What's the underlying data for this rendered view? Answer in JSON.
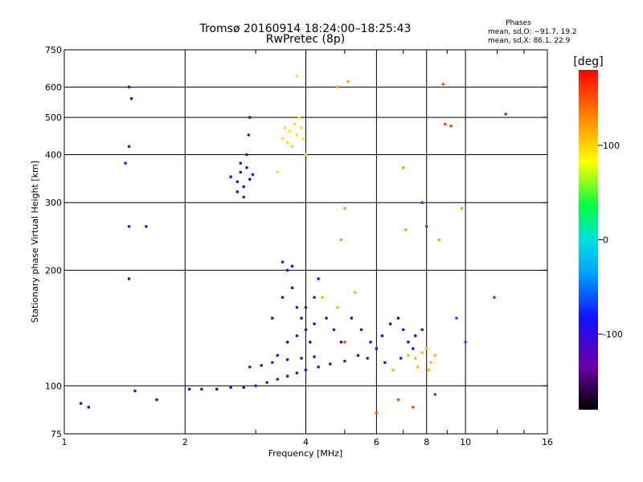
{
  "chart_data": {
    "type": "scatter",
    "title": "Tromsø 20160914 18:24:00–18:25:43",
    "subtitle": "RwPretec (8p)",
    "phase_info": {
      "heading": "Phases",
      "line1": "mean, sd,O: −91.7, 19.2",
      "line2": "mean, sd,X:  86.1, 22.9"
    },
    "xlabel": "Frequency [MHz]",
    "ylabel": "Stationary phase Virtual Height [km]",
    "x_scale": "log",
    "y_scale": "log",
    "xlim": [
      1,
      16
    ],
    "ylim": [
      75,
      750
    ],
    "x_ticks": [
      1,
      2,
      4,
      6,
      8,
      10,
      16
    ],
    "y_ticks": [
      75,
      100,
      200,
      300,
      400,
      500,
      600,
      750
    ],
    "x_grid": [
      2,
      4,
      6,
      8,
      10
    ],
    "y_grid": [
      100,
      200,
      300,
      400,
      500,
      600
    ],
    "grid": true,
    "colorbar": {
      "label": "[deg]",
      "range": [
        -180,
        180
      ],
      "ticks": [
        100,
        0,
        -100
      ]
    },
    "legend": "none",
    "clusters": [
      {
        "phase": -100,
        "points": [
          [
            2.05,
            98
          ],
          [
            2.2,
            98
          ],
          [
            2.4,
            98
          ],
          [
            2.6,
            99
          ],
          [
            2.8,
            99
          ],
          [
            3.0,
            100
          ],
          [
            3.2,
            102
          ],
          [
            3.4,
            104
          ],
          [
            3.6,
            106
          ],
          [
            3.8,
            108
          ],
          [
            4.0,
            110
          ],
          [
            4.3,
            112
          ],
          [
            4.6,
            114
          ],
          [
            5.0,
            116
          ]
        ]
      },
      {
        "phase": -110,
        "points": [
          [
            2.9,
            112
          ],
          [
            3.1,
            113
          ],
          [
            3.3,
            115
          ],
          [
            3.6,
            117
          ],
          [
            3.9,
            118
          ],
          [
            4.2,
            119
          ]
        ]
      },
      {
        "phase": -105,
        "points": [
          [
            2.6,
            350
          ],
          [
            2.7,
            340
          ],
          [
            2.75,
            360
          ],
          [
            2.8,
            330
          ],
          [
            2.85,
            370
          ],
          [
            2.9,
            345
          ],
          [
            2.95,
            355
          ],
          [
            2.8,
            310
          ],
          [
            2.85,
            400
          ],
          [
            2.88,
            450
          ],
          [
            2.9,
            500
          ],
          [
            2.7,
            320
          ],
          [
            2.75,
            380
          ]
        ]
      },
      {
        "phase": 95,
        "points": [
          [
            3.5,
            440
          ],
          [
            3.6,
            430
          ],
          [
            3.65,
            460
          ],
          [
            3.7,
            420
          ],
          [
            3.75,
            480
          ],
          [
            3.8,
            450
          ],
          [
            3.85,
            500
          ],
          [
            3.9,
            470
          ],
          [
            3.55,
            470
          ],
          [
            3.95,
            440
          ],
          [
            3.8,
            640
          ],
          [
            3.4,
            360
          ],
          [
            4.0,
            400
          ]
        ]
      },
      {
        "phase": -100,
        "points": [
          [
            1.1,
            90
          ],
          [
            1.15,
            88
          ],
          [
            1.5,
            97
          ],
          [
            1.7,
            92
          ],
          [
            1.45,
            190
          ],
          [
            1.45,
            260
          ],
          [
            1.6,
            260
          ],
          [
            1.47,
            560
          ],
          [
            1.45,
            600
          ],
          [
            1.45,
            420
          ],
          [
            1.42,
            380
          ]
        ]
      },
      {
        "phase": -95,
        "points": [
          [
            3.3,
            150
          ],
          [
            3.5,
            170
          ],
          [
            3.6,
            200
          ],
          [
            3.7,
            180
          ],
          [
            3.8,
            160
          ],
          [
            3.9,
            150
          ],
          [
            4.0,
            140
          ],
          [
            4.1,
            130
          ],
          [
            4.2,
            170
          ],
          [
            4.3,
            190
          ],
          [
            4.5,
            150
          ],
          [
            4.7,
            140
          ],
          [
            4.9,
            130
          ],
          [
            3.4,
            120
          ],
          [
            3.6,
            130
          ],
          [
            3.8,
            135
          ],
          [
            4.0,
            160
          ],
          [
            4.2,
            145
          ],
          [
            3.5,
            210
          ],
          [
            3.7,
            205
          ]
        ]
      },
      {
        "phase": -90,
        "points": [
          [
            5.2,
            150
          ],
          [
            5.5,
            140
          ],
          [
            5.8,
            130
          ],
          [
            6.0,
            125
          ],
          [
            6.2,
            135
          ],
          [
            6.5,
            145
          ],
          [
            6.8,
            150
          ],
          [
            7.0,
            140
          ],
          [
            7.2,
            130
          ],
          [
            7.4,
            125
          ],
          [
            5.4,
            120
          ],
          [
            5.7,
            118
          ],
          [
            6.3,
            115
          ],
          [
            6.9,
            118
          ],
          [
            7.5,
            135
          ],
          [
            7.8,
            140
          ]
        ]
      },
      {
        "phase": 110,
        "points": [
          [
            7.2,
            120
          ],
          [
            7.5,
            118
          ],
          [
            7.8,
            122
          ],
          [
            8.0,
            125
          ],
          [
            8.2,
            115
          ],
          [
            8.4,
            120
          ],
          [
            7.6,
            112
          ],
          [
            8.1,
            110
          ],
          [
            4.4,
            170
          ],
          [
            4.8,
            160
          ],
          [
            5.3,
            175
          ],
          [
            6.6,
            110
          ]
        ]
      },
      {
        "phase": 150,
        "points": [
          [
            7.4,
            88
          ],
          [
            8.8,
            610
          ],
          [
            8.9,
            480
          ],
          [
            9.2,
            475
          ],
          [
            6.8,
            92
          ],
          [
            5.0,
            130
          ],
          [
            6.0,
            85
          ]
        ]
      },
      {
        "phase": -60,
        "points": [
          [
            7.8,
            300
          ],
          [
            8.0,
            260
          ],
          [
            8.4,
            95
          ],
          [
            9.5,
            150
          ],
          [
            11.8,
            170
          ],
          [
            12.6,
            510
          ],
          [
            10.0,
            130
          ]
        ]
      },
      {
        "phase": 120,
        "points": [
          [
            5.0,
            290
          ],
          [
            4.9,
            240
          ],
          [
            7.0,
            370
          ],
          [
            7.1,
            255
          ],
          [
            8.6,
            240
          ],
          [
            9.8,
            290
          ],
          [
            4.8,
            600
          ],
          [
            5.1,
            620
          ]
        ]
      }
    ]
  }
}
